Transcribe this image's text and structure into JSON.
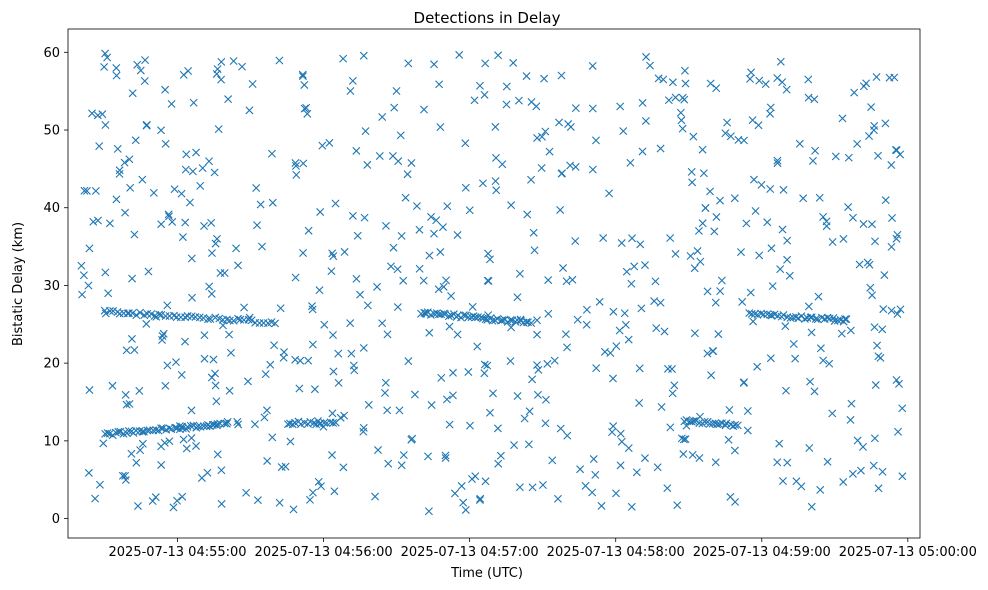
{
  "chart_data": {
    "type": "scatter",
    "title": "Detections in Delay",
    "xlabel": "Time (UTC)",
    "ylabel": "Bistatic Delay (km)",
    "x_unit": "time",
    "xlim": [
      "2025-07-13 04:54:15",
      "2025-07-13 05:00:05"
    ],
    "ylim": [
      -2.5,
      63
    ],
    "x_ticks": [
      "2025-07-13 04:55:00",
      "2025-07-13 04:56:00",
      "2025-07-13 04:57:00",
      "2025-07-13 04:58:00",
      "2025-07-13 04:59:00",
      "2025-07-13 05:00:00"
    ],
    "y_ticks": [
      0,
      10,
      20,
      30,
      40,
      50,
      60
    ],
    "grid": false,
    "marker": "x",
    "color": "#1f77b4",
    "series": [
      {
        "name": "",
        "random_detections": {
          "count": 700,
          "x_range": [
            "2025-07-13 04:54:20",
            "2025-07-13 04:59:58"
          ],
          "y_range": [
            0.5,
            60
          ]
        },
        "tracks": [
          {
            "start": "2025-07-13 04:54:30",
            "end": "2025-07-13 04:55:02",
            "y_start": 10.8,
            "y_end": 11.8,
            "n": 30
          },
          {
            "start": "2025-07-13 04:55:00",
            "end": "2025-07-13 04:55:20",
            "y_start": 11.6,
            "y_end": 12.2,
            "n": 20
          },
          {
            "start": "2025-07-13 04:54:32",
            "end": "2025-07-13 04:55:40",
            "y_start": 26.6,
            "y_end": 25.2,
            "n": 45
          },
          {
            "start": "2025-07-13 04:55:45",
            "end": "2025-07-13 04:56:05",
            "y_start": 12.3,
            "y_end": 12.3,
            "n": 18
          },
          {
            "start": "2025-07-13 04:56:40",
            "end": "2025-07-13 04:57:25",
            "y_start": 26.5,
            "y_end": 25.2,
            "n": 45
          },
          {
            "start": "2025-07-13 04:58:28",
            "end": "2025-07-13 04:58:50",
            "y_start": 12.6,
            "y_end": 12.0,
            "n": 22
          },
          {
            "start": "2025-07-13 04:58:55",
            "end": "2025-07-13 04:59:35",
            "y_start": 26.3,
            "y_end": 25.5,
            "n": 35
          }
        ]
      }
    ]
  }
}
